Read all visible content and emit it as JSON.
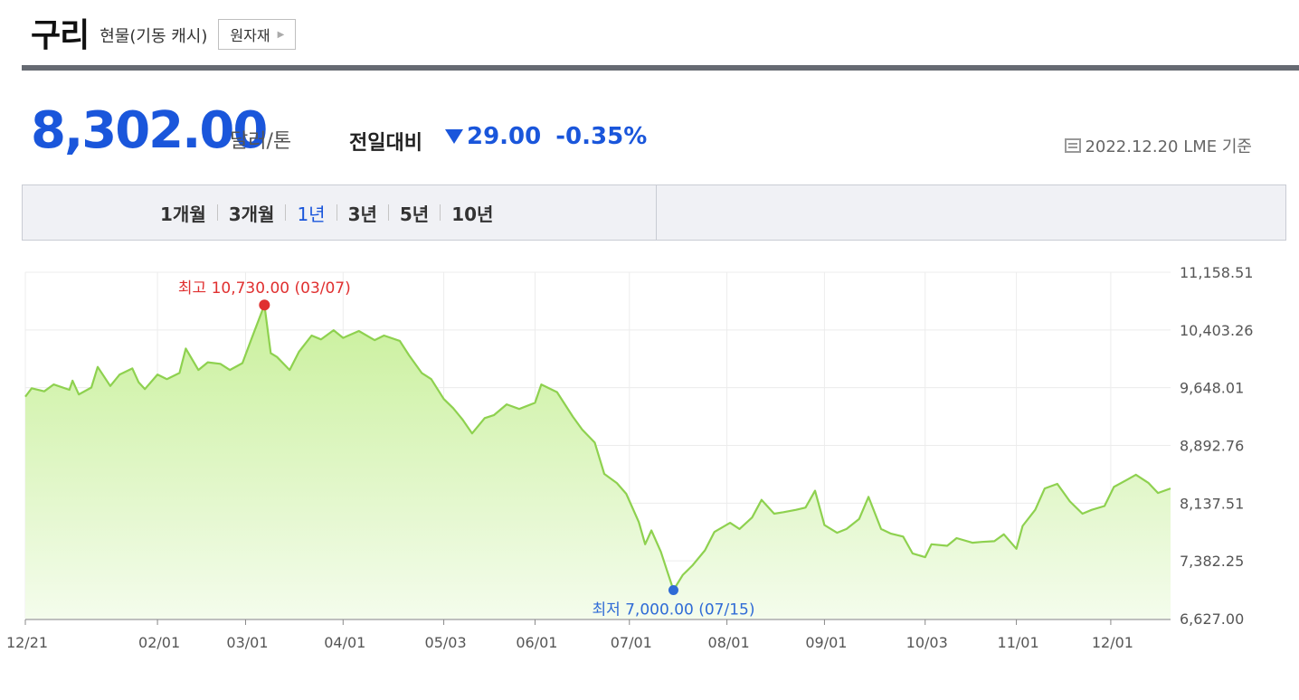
{
  "header": {
    "title": "구리",
    "subtitle": "현물(기동 캐시)",
    "category_button": "원자재"
  },
  "price": {
    "value": "8,302.00",
    "unit": "달러/톤",
    "compare_label": "전일대비",
    "change": "29.00",
    "change_pct": "-0.35%",
    "direction": "down",
    "as_of": "2022.12.20 LME 기준"
  },
  "periods": [
    {
      "label": "1개월",
      "active": false
    },
    {
      "label": "3개월",
      "active": false
    },
    {
      "label": "1년",
      "active": true
    },
    {
      "label": "3년",
      "active": false
    },
    {
      "label": "5년",
      "active": false
    },
    {
      "label": "10년",
      "active": false
    }
  ],
  "colors": {
    "accent": "#1a56db",
    "line": "#8ed14f",
    "fill_top": "#c9f09b",
    "high": "#e03030",
    "low": "#2f6bd6"
  },
  "chart_data": {
    "type": "area",
    "x_tick_labels": [
      "12/21",
      "02/01",
      "03/01",
      "04/01",
      "05/03",
      "06/01",
      "07/01",
      "08/01",
      "09/01",
      "10/03",
      "11/01",
      "12/01"
    ],
    "y_tick_labels": [
      "11,158.51",
      "10,403.26",
      "9,648.01",
      "8,892.76",
      "8,137.51",
      "7,382.25",
      "6,627.00"
    ],
    "ylim": [
      6627.0,
      11158.51
    ],
    "grid": true,
    "x_start": "2021-12-21",
    "x_end": "2022-12-20",
    "high": {
      "label": "최고 10,730.00 (03/07)",
      "date": "2022-03-07",
      "value": 10730.0
    },
    "low": {
      "label": "최저 7,000.00 (07/15)",
      "date": "2022-07-15",
      "value": 7000.0
    },
    "series": [
      {
        "name": "",
        "points": [
          [
            "2021-12-21",
            9530
          ],
          [
            "2021-12-23",
            9640
          ],
          [
            "2021-12-27",
            9600
          ],
          [
            "2021-12-30",
            9690
          ],
          [
            "2022-01-04",
            9620
          ],
          [
            "2022-01-05",
            9740
          ],
          [
            "2022-01-07",
            9560
          ],
          [
            "2022-01-11",
            9650
          ],
          [
            "2022-01-13",
            9920
          ],
          [
            "2022-01-17",
            9670
          ],
          [
            "2022-01-20",
            9820
          ],
          [
            "2022-01-24",
            9900
          ],
          [
            "2022-01-26",
            9720
          ],
          [
            "2022-01-28",
            9630
          ],
          [
            "2022-02-01",
            9820
          ],
          [
            "2022-02-04",
            9760
          ],
          [
            "2022-02-08",
            9840
          ],
          [
            "2022-02-10",
            10160
          ],
          [
            "2022-02-14",
            9880
          ],
          [
            "2022-02-17",
            9980
          ],
          [
            "2022-02-21",
            9960
          ],
          [
            "2022-02-24",
            9880
          ],
          [
            "2022-02-28",
            9970
          ],
          [
            "2022-03-03",
            10300
          ],
          [
            "2022-03-07",
            10730
          ],
          [
            "2022-03-09",
            10100
          ],
          [
            "2022-03-11",
            10050
          ],
          [
            "2022-03-15",
            9880
          ],
          [
            "2022-03-18",
            10120
          ],
          [
            "2022-03-22",
            10330
          ],
          [
            "2022-03-25",
            10280
          ],
          [
            "2022-03-29",
            10400
          ],
          [
            "2022-04-01",
            10300
          ],
          [
            "2022-04-06",
            10390
          ],
          [
            "2022-04-11",
            10270
          ],
          [
            "2022-04-14",
            10330
          ],
          [
            "2022-04-19",
            10260
          ],
          [
            "2022-04-22",
            10070
          ],
          [
            "2022-04-26",
            9840
          ],
          [
            "2022-04-29",
            9760
          ],
          [
            "2022-05-03",
            9500
          ],
          [
            "2022-05-06",
            9380
          ],
          [
            "2022-05-09",
            9230
          ],
          [
            "2022-05-12",
            9050
          ],
          [
            "2022-05-16",
            9250
          ],
          [
            "2022-05-19",
            9290
          ],
          [
            "2022-05-23",
            9430
          ],
          [
            "2022-05-27",
            9370
          ],
          [
            "2022-06-01",
            9450
          ],
          [
            "2022-06-03",
            9690
          ],
          [
            "2022-06-08",
            9590
          ],
          [
            "2022-06-13",
            9270
          ],
          [
            "2022-06-16",
            9100
          ],
          [
            "2022-06-20",
            8930
          ],
          [
            "2022-06-23",
            8520
          ],
          [
            "2022-06-27",
            8400
          ],
          [
            "2022-06-30",
            8260
          ],
          [
            "2022-07-04",
            7890
          ],
          [
            "2022-07-06",
            7600
          ],
          [
            "2022-07-08",
            7780
          ],
          [
            "2022-07-11",
            7500
          ],
          [
            "2022-07-13",
            7250
          ],
          [
            "2022-07-15",
            7000
          ],
          [
            "2022-07-18",
            7200
          ],
          [
            "2022-07-21",
            7320
          ],
          [
            "2022-07-25",
            7520
          ],
          [
            "2022-07-28",
            7760
          ],
          [
            "2022-08-02",
            7880
          ],
          [
            "2022-08-05",
            7800
          ],
          [
            "2022-08-09",
            7950
          ],
          [
            "2022-08-12",
            8180
          ],
          [
            "2022-08-16",
            8000
          ],
          [
            "2022-08-19",
            8020
          ],
          [
            "2022-08-23",
            8050
          ],
          [
            "2022-08-26",
            8080
          ],
          [
            "2022-08-29",
            8300
          ],
          [
            "2022-09-01",
            7850
          ],
          [
            "2022-09-05",
            7750
          ],
          [
            "2022-09-08",
            7800
          ],
          [
            "2022-09-12",
            7930
          ],
          [
            "2022-09-15",
            8220
          ],
          [
            "2022-09-19",
            7800
          ],
          [
            "2022-09-22",
            7740
          ],
          [
            "2022-09-26",
            7700
          ],
          [
            "2022-09-29",
            7480
          ],
          [
            "2022-10-03",
            7430
          ],
          [
            "2022-10-05",
            7600
          ],
          [
            "2022-10-10",
            7580
          ],
          [
            "2022-10-13",
            7680
          ],
          [
            "2022-10-18",
            7620
          ],
          [
            "2022-10-21",
            7630
          ],
          [
            "2022-10-25",
            7640
          ],
          [
            "2022-10-28",
            7730
          ],
          [
            "2022-11-01",
            7540
          ],
          [
            "2022-11-03",
            7840
          ],
          [
            "2022-11-07",
            8050
          ],
          [
            "2022-11-10",
            8330
          ],
          [
            "2022-11-14",
            8390
          ],
          [
            "2022-11-18",
            8160
          ],
          [
            "2022-11-22",
            8000
          ],
          [
            "2022-11-25",
            8050
          ],
          [
            "2022-11-29",
            8100
          ],
          [
            "2022-12-02",
            8350
          ],
          [
            "2022-12-06",
            8440
          ],
          [
            "2022-12-09",
            8510
          ],
          [
            "2022-12-13",
            8400
          ],
          [
            "2022-12-16",
            8270
          ],
          [
            "2022-12-20",
            8330
          ]
        ]
      }
    ]
  }
}
